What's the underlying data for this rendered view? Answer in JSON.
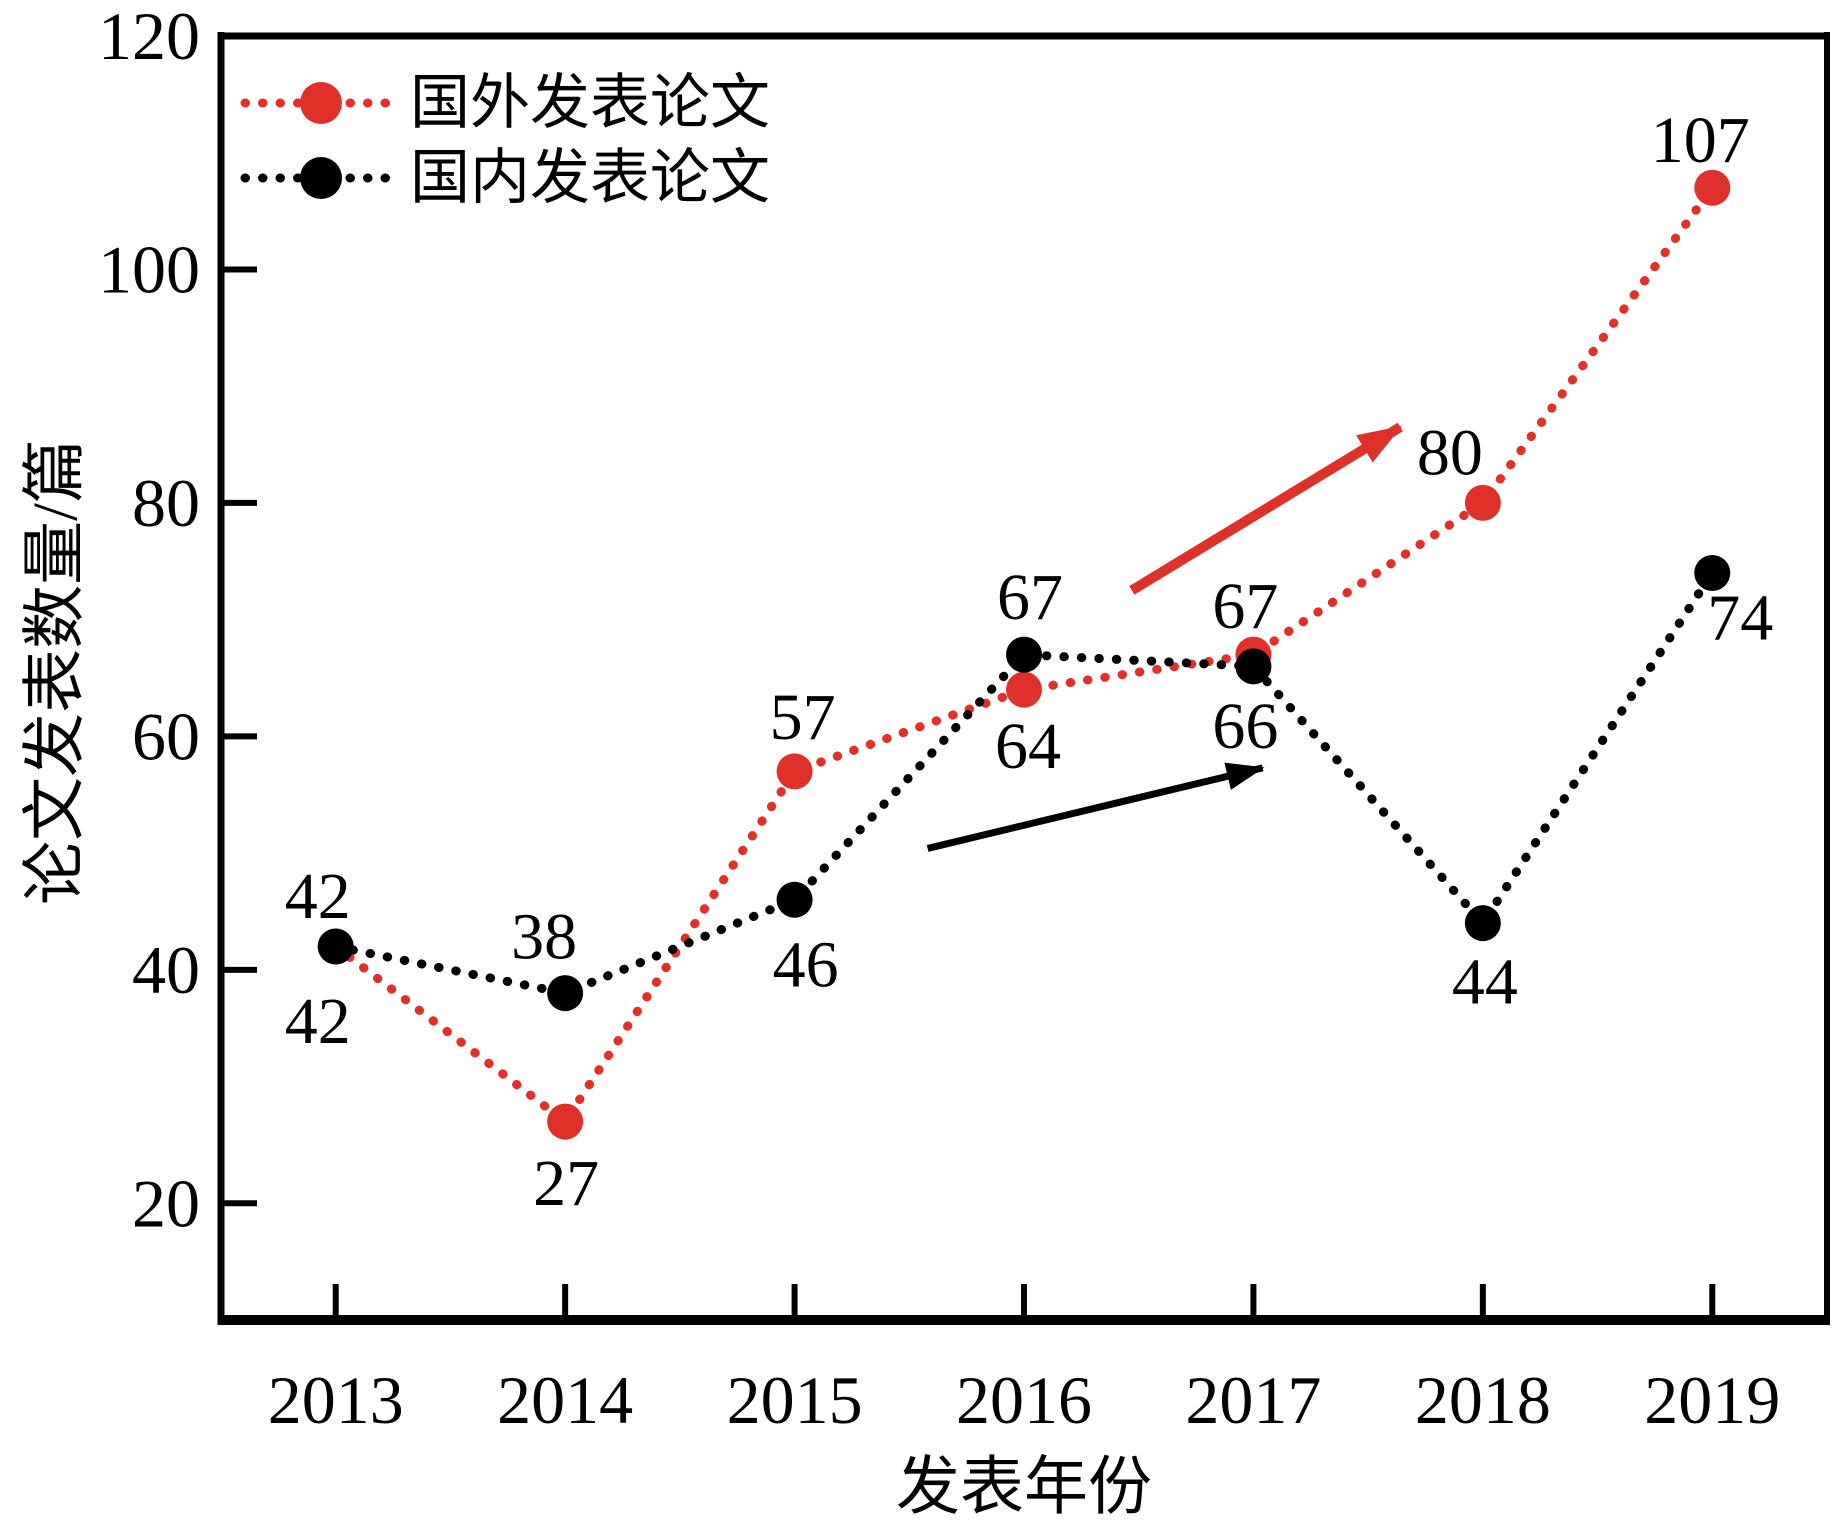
{
  "chart_data": {
    "type": "line",
    "title": "",
    "xlabel": "发表年份",
    "ylabel": "论文发表数量/篇",
    "x_categories": [
      "2013",
      "2014",
      "2015",
      "2016",
      "2017",
      "2018",
      "2019"
    ],
    "x_values": [
      2013,
      2014,
      2015,
      2016,
      2017,
      2018,
      2019
    ],
    "y_ticks": [
      "20",
      "40",
      "60",
      "80",
      "100",
      "120"
    ],
    "y_tick_values": [
      20,
      40,
      60,
      80,
      100,
      120
    ],
    "xlim": [
      2012.5,
      2019.5
    ],
    "ylim": [
      10,
      120
    ],
    "grid": false,
    "legend_position": "upper-left-inside",
    "box_spines": true,
    "ticks_direction": "in",
    "series": [
      {
        "name": "国外发表论文",
        "color": "#e0302a",
        "marker": "circle",
        "linestyle": "dotted",
        "values": [
          42,
          27,
          57,
          64,
          67,
          80,
          107
        ],
        "value_labels": [
          "42",
          "27",
          "57",
          "64",
          "67",
          "80",
          "107"
        ],
        "label_offsets": [
          [
            -18,
            75
          ],
          [
            1,
            62
          ],
          [
            8,
            -54
          ],
          [
            4,
            57
          ],
          [
            -8,
            -48
          ],
          [
            -33,
            -50
          ],
          [
            -12,
            -47
          ]
        ]
      },
      {
        "name": "国内发表论文",
        "color": "#000000",
        "marker": "circle",
        "linestyle": "dotted",
        "values": [
          42,
          38,
          46,
          67,
          66,
          44,
          74
        ],
        "value_labels": [
          "42",
          "38",
          "46",
          "67",
          "66",
          "44",
          "74"
        ],
        "label_offsets": [
          [
            -18,
            -50
          ],
          [
            -21,
            -56
          ],
          [
            11,
            65
          ],
          [
            6,
            -57
          ],
          [
            -8,
            60
          ],
          [
            2,
            59
          ],
          [
            28,
            45
          ]
        ]
      }
    ],
    "annotations": {
      "arrows": [
        {
          "name": "red-trend-arrow",
          "color": "#e0302a",
          "from": [
            2016.47,
            72.5
          ],
          "to": [
            2017.64,
            86.5
          ],
          "width": 10
        },
        {
          "name": "black-trend-arrow",
          "color": "#000000",
          "from": [
            2015.58,
            50.4
          ],
          "to": [
            2017.04,
            57.3
          ],
          "width": 7
        }
      ]
    }
  }
}
